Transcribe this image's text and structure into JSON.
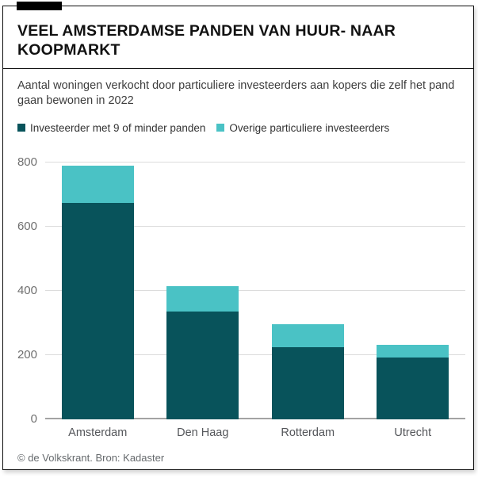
{
  "header": {
    "title": "VEEL AMSTERDAMSE PANDEN VAN HUUR- NAAR KOOPMARKT"
  },
  "chart_data": {
    "type": "bar",
    "stacked": true,
    "subtitle": "Aantal woningen verkocht door particuliere investeerders aan kopers die zelf het pand gaan bewonen in 2022",
    "categories": [
      "Amsterdam",
      "Den Haag",
      "Rotterdam",
      "Utrecht"
    ],
    "series": [
      {
        "name": "Investeerder met 9 of minder panden",
        "color": "#08535b",
        "values": [
          675,
          335,
          225,
          192
        ]
      },
      {
        "name": "Overige particuliere investeerders",
        "color": "#4ac2c5",
        "values": [
          115,
          80,
          70,
          40
        ]
      }
    ],
    "totals": [
      790,
      415,
      295,
      232
    ],
    "ylim": [
      0,
      800
    ],
    "yticks": [
      0,
      200,
      400,
      600,
      800
    ],
    "grid": "horizontal",
    "legend_position": "top"
  },
  "colors": {
    "accent_dark": "#08535b",
    "accent_light": "#4ac2c5",
    "border": "#111111",
    "gridline": "#dcdcdc",
    "axis": "#a3a3a3"
  },
  "footer": {
    "credit": "© de Volkskrant. Bron: Kadaster"
  }
}
